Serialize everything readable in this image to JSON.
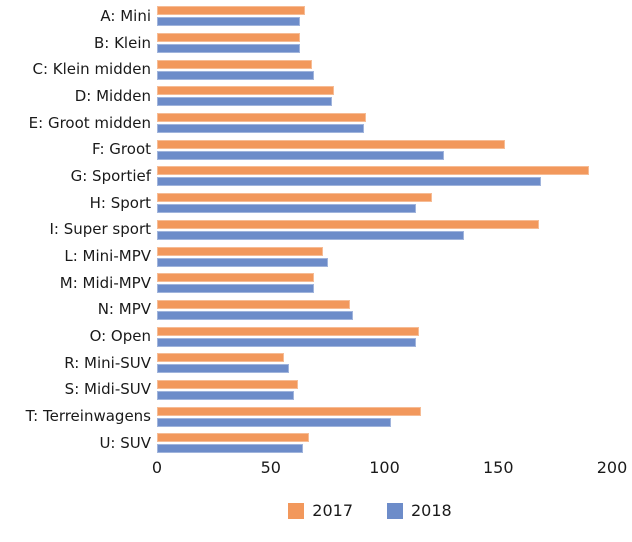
{
  "chart_data": {
    "type": "bar",
    "orientation": "horizontal",
    "title": "",
    "xlabel": "",
    "ylabel": "",
    "grid": false,
    "legend_position": "bottom",
    "xlim": [
      0,
      200
    ],
    "xticks": [
      0,
      50,
      100,
      150,
      200
    ],
    "categories": [
      "A: Mini",
      "B: Klein",
      "C: Klein midden",
      "D: Midden",
      "E: Groot midden",
      "F: Groot",
      "G: Sportief",
      "H: Sport",
      "I: Super sport",
      "L: Mini-MPV",
      "M: Midi-MPV",
      "N: MPV",
      "O: Open",
      "R: Mini-SUV",
      "S: Midi-SUV",
      "T: Terreinwagens",
      "U: SUV"
    ],
    "series": [
      {
        "name": "2017",
        "color": "#F2985C",
        "values": [
          65,
          63,
          68,
          78,
          92,
          153,
          190,
          121,
          168,
          73,
          69,
          85,
          115,
          56,
          62,
          116,
          67
        ]
      },
      {
        "name": "2018",
        "color": "#6D8CC9",
        "values": [
          63,
          63,
          69,
          77,
          91,
          126,
          169,
          114,
          135,
          75,
          69,
          86,
          114,
          58,
          60,
          103,
          64
        ]
      }
    ],
    "colors": {
      "accent_2017": "#F2985C",
      "accent_2018": "#6D8CC9",
      "text": "#1a1a1a"
    }
  }
}
